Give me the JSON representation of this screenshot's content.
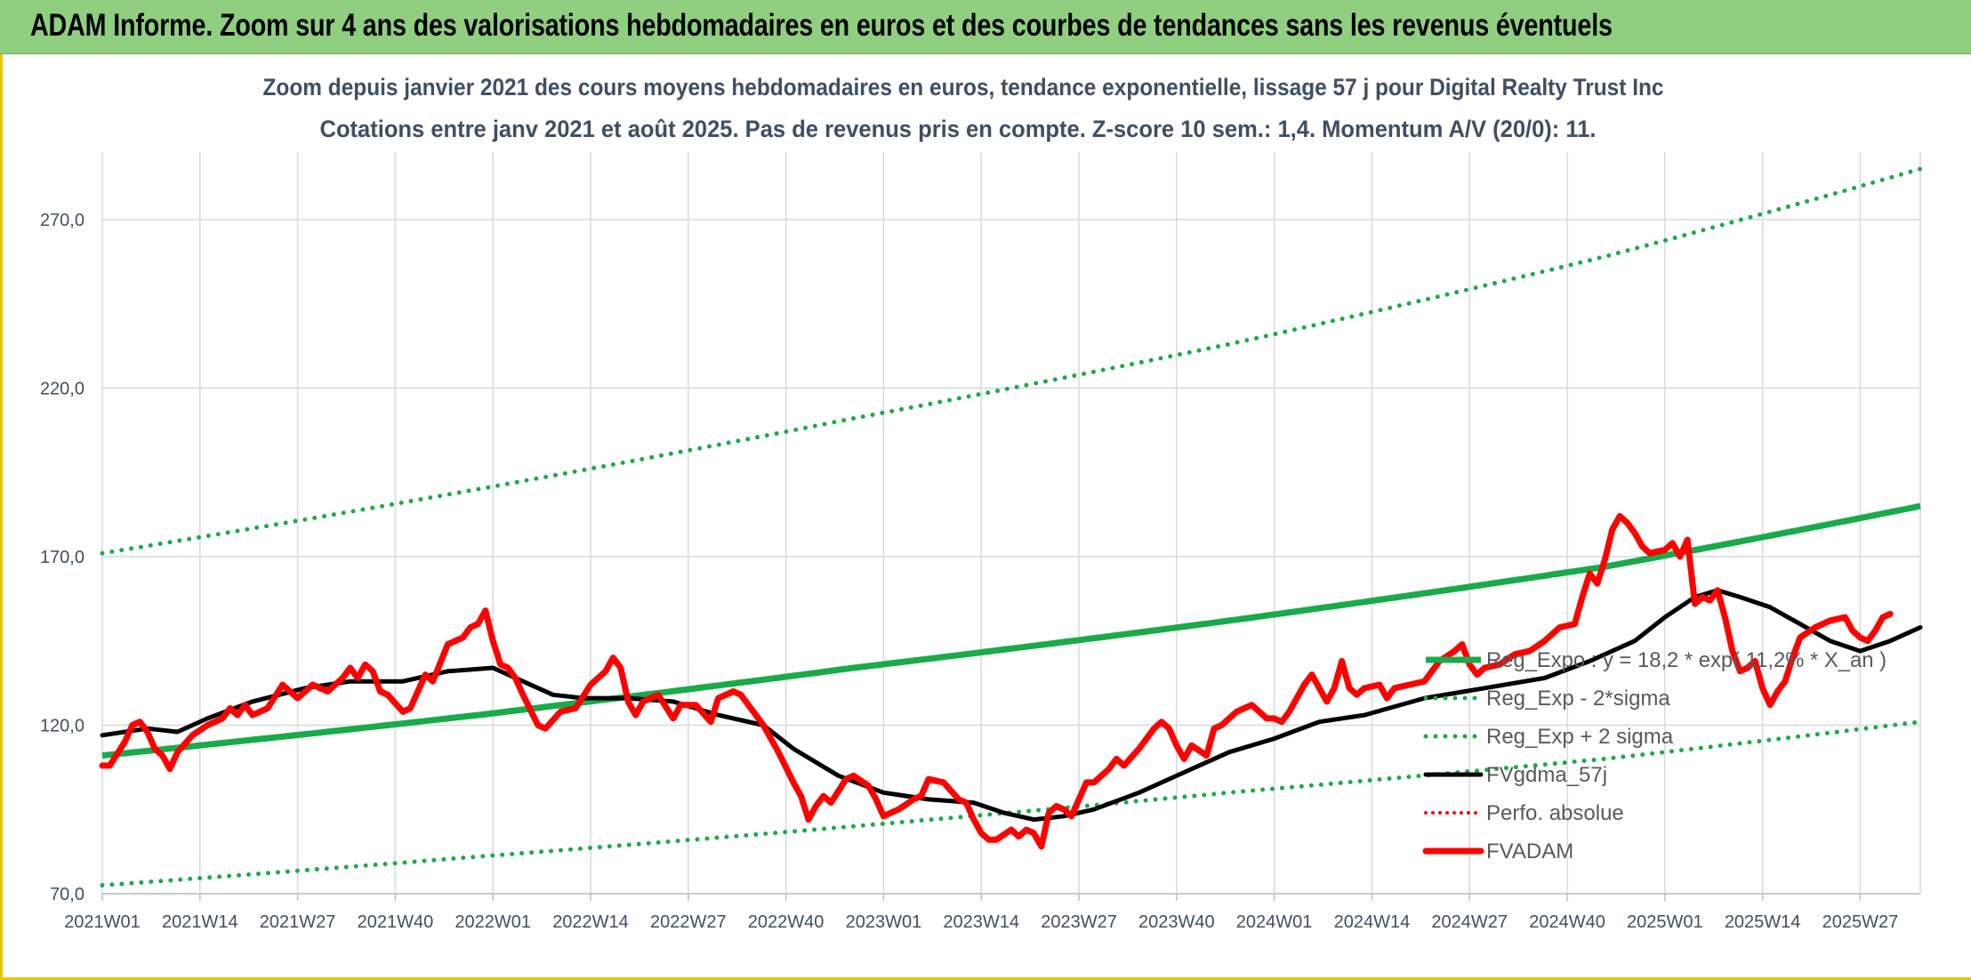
{
  "banner": {
    "title": "ADAM Informe. Zoom sur 4 ans des valorisations hebdomadaires en euros et des courbes de tendances sans les revenus éventuels"
  },
  "chart_data": {
    "type": "line",
    "title_lines": [
      "Zoom depuis janvier 2021 des cours moyens hebdomadaires en euros, tendance exponentielle, lissage 57 j pour Digital Realty Trust Inc",
      "Cotations entre janv 2021 et août 2025. Pas de revenus pris en compte. Z-score 10 sem.: 1,4. Momentum A/V (20/0): 11."
    ],
    "xlabel": "",
    "ylabel": "",
    "ylim": [
      70,
      290
    ],
    "y_ticks": [
      "70,0",
      "120,0",
      "170,0",
      "220,0",
      "270,0"
    ],
    "y_tick_values": [
      70,
      120,
      170,
      220,
      270
    ],
    "x_ticks": [
      "2021W01",
      "2021W14",
      "2021W27",
      "2021W40",
      "2022W01",
      "2022W14",
      "2022W27",
      "2022W40",
      "2023W01",
      "2023W14",
      "2023W27",
      "2023W40",
      "2024W01",
      "2024W14",
      "2024W27",
      "2024W40",
      "2025W01",
      "2025W14",
      "2025W27"
    ],
    "x_range_weeks": [
      0,
      242
    ],
    "grid": "vertical and horizontal",
    "legend_position": "bottom-right, inside plot",
    "colors": {
      "regression": "#1aaa4b",
      "bands": "#1aaa4b",
      "smoothed": "#000000",
      "perfo": "#e0141c",
      "price": "#ff0000"
    },
    "series": [
      {
        "name": "Reg_Expo : y = 18,2 * exp( 11,2% * X_an )",
        "style": "solid",
        "points": [
          [
            0,
            111
          ],
          [
            50,
            123
          ],
          [
            100,
            137
          ],
          [
            150,
            151
          ],
          [
            200,
            167
          ],
          [
            242,
            185
          ]
        ]
      },
      {
        "name": "Reg_Exp - 2*sigma",
        "style": "dotted",
        "points": [
          [
            0,
            72.5
          ],
          [
            50,
            81
          ],
          [
            100,
            90
          ],
          [
            150,
            100
          ],
          [
            200,
            110
          ],
          [
            242,
            121
          ]
        ]
      },
      {
        "name": "Reg_Exp + 2 sigma",
        "style": "dotted",
        "points": [
          [
            0,
            171
          ],
          [
            50,
            190
          ],
          [
            100,
            211
          ],
          [
            150,
            233
          ],
          [
            200,
            259
          ],
          [
            242,
            285
          ]
        ]
      },
      {
        "name": "FVgdma_57j",
        "style": "solid",
        "points": [
          [
            0,
            117
          ],
          [
            6,
            119
          ],
          [
            10,
            118
          ],
          [
            14,
            122
          ],
          [
            20,
            127
          ],
          [
            27,
            131
          ],
          [
            33,
            133
          ],
          [
            40,
            133
          ],
          [
            46,
            136
          ],
          [
            52,
            137
          ],
          [
            56,
            133
          ],
          [
            60,
            129
          ],
          [
            64,
            128
          ],
          [
            70,
            128
          ],
          [
            76,
            127
          ],
          [
            82,
            123
          ],
          [
            88,
            120
          ],
          [
            92,
            113
          ],
          [
            98,
            105
          ],
          [
            104,
            100
          ],
          [
            110,
            98
          ],
          [
            116,
            97
          ],
          [
            120,
            94
          ],
          [
            124,
            92
          ],
          [
            128,
            93
          ],
          [
            132,
            95
          ],
          [
            138,
            100
          ],
          [
            144,
            106
          ],
          [
            150,
            112
          ],
          [
            156,
            116
          ],
          [
            162,
            121
          ],
          [
            168,
            123
          ],
          [
            176,
            128
          ],
          [
            184,
            131
          ],
          [
            192,
            134
          ],
          [
            198,
            139
          ],
          [
            204,
            145
          ],
          [
            208,
            152
          ],
          [
            212,
            158
          ],
          [
            215,
            160
          ],
          [
            218,
            158
          ],
          [
            222,
            155
          ],
          [
            226,
            150
          ],
          [
            230,
            145
          ],
          [
            234,
            142
          ],
          [
            238,
            145
          ],
          [
            242,
            149
          ]
        ]
      },
      {
        "name": "Perfo. absolue",
        "style": "dotted",
        "points": []
      },
      {
        "name": "FVADAM",
        "style": "solid",
        "points": [
          [
            0,
            108
          ],
          [
            1,
            108
          ],
          [
            3,
            115
          ],
          [
            4,
            120
          ],
          [
            5,
            121
          ],
          [
            6,
            118
          ],
          [
            7,
            113
          ],
          [
            8,
            111
          ],
          [
            9,
            107
          ],
          [
            10,
            112
          ],
          [
            12,
            117
          ],
          [
            14,
            120
          ],
          [
            16,
            122
          ],
          [
            17,
            125
          ],
          [
            18,
            123
          ],
          [
            19,
            126
          ],
          [
            20,
            123
          ],
          [
            22,
            125
          ],
          [
            24,
            132
          ],
          [
            26,
            128
          ],
          [
            28,
            132
          ],
          [
            30,
            130
          ],
          [
            32,
            134
          ],
          [
            33,
            137
          ],
          [
            34,
            134
          ],
          [
            35,
            138
          ],
          [
            36,
            136
          ],
          [
            37,
            130
          ],
          [
            38,
            129
          ],
          [
            40,
            124
          ],
          [
            41,
            125
          ],
          [
            43,
            135
          ],
          [
            44,
            133
          ],
          [
            46,
            144
          ],
          [
            48,
            146
          ],
          [
            49,
            149
          ],
          [
            50,
            150
          ],
          [
            51,
            154
          ],
          [
            52,
            145
          ],
          [
            53,
            138
          ],
          [
            54,
            137
          ],
          [
            55,
            134
          ],
          [
            56,
            129
          ],
          [
            58,
            120
          ],
          [
            59,
            119
          ],
          [
            61,
            124
          ],
          [
            63,
            125
          ],
          [
            65,
            132
          ],
          [
            67,
            136
          ],
          [
            68,
            140
          ],
          [
            69,
            137
          ],
          [
            70,
            127
          ],
          [
            71,
            123
          ],
          [
            72,
            127
          ],
          [
            74,
            129
          ],
          [
            76,
            122
          ],
          [
            77,
            126
          ],
          [
            79,
            126
          ],
          [
            81,
            121
          ],
          [
            82,
            128
          ],
          [
            84,
            130
          ],
          [
            85,
            129
          ],
          [
            87,
            123
          ],
          [
            88,
            120
          ],
          [
            90,
            112
          ],
          [
            92,
            103
          ],
          [
            93,
            99
          ],
          [
            94,
            92
          ],
          [
            95,
            96
          ],
          [
            96,
            99
          ],
          [
            97,
            97
          ],
          [
            99,
            104
          ],
          [
            100,
            105
          ],
          [
            102,
            102
          ],
          [
            103,
            98
          ],
          [
            104,
            93
          ],
          [
            106,
            95
          ],
          [
            108,
            98
          ],
          [
            109,
            99
          ],
          [
            110,
            104
          ],
          [
            112,
            103
          ],
          [
            114,
            98
          ],
          [
            115,
            97
          ],
          [
            116,
            92
          ],
          [
            117,
            88
          ],
          [
            118,
            86
          ],
          [
            119,
            86
          ],
          [
            121,
            89
          ],
          [
            122,
            87
          ],
          [
            123,
            89
          ],
          [
            124,
            88
          ],
          [
            125,
            84
          ],
          [
            126,
            94
          ],
          [
            127,
            96
          ],
          [
            128,
            95
          ],
          [
            129,
            93
          ],
          [
            130,
            98
          ],
          [
            131,
            103
          ],
          [
            132,
            103
          ],
          [
            134,
            107
          ],
          [
            135,
            110
          ],
          [
            136,
            108
          ],
          [
            138,
            113
          ],
          [
            140,
            119
          ],
          [
            141,
            121
          ],
          [
            142,
            119
          ],
          [
            143,
            114
          ],
          [
            144,
            110
          ],
          [
            145,
            114
          ],
          [
            147,
            111
          ],
          [
            148,
            119
          ],
          [
            149,
            120
          ],
          [
            150,
            122
          ],
          [
            151,
            124
          ],
          [
            152,
            125
          ],
          [
            153,
            126
          ],
          [
            155,
            122
          ],
          [
            156,
            122
          ],
          [
            157,
            121
          ],
          [
            158,
            124
          ],
          [
            159,
            128
          ],
          [
            160,
            132
          ],
          [
            161,
            135
          ],
          [
            162,
            131
          ],
          [
            163,
            127
          ],
          [
            164,
            131
          ],
          [
            165,
            139
          ],
          [
            166,
            131
          ],
          [
            167,
            129
          ],
          [
            168,
            131
          ],
          [
            170,
            132
          ],
          [
            171,
            128
          ],
          [
            172,
            131
          ],
          [
            174,
            132
          ],
          [
            176,
            133
          ],
          [
            178,
            139
          ],
          [
            180,
            142
          ],
          [
            181,
            144
          ],
          [
            182,
            138
          ],
          [
            183,
            135
          ],
          [
            184,
            137
          ],
          [
            186,
            138
          ],
          [
            188,
            141
          ],
          [
            190,
            142
          ],
          [
            192,
            145
          ],
          [
            194,
            149
          ],
          [
            196,
            150
          ],
          [
            197,
            158
          ],
          [
            198,
            165
          ],
          [
            199,
            162
          ],
          [
            200,
            169
          ],
          [
            201,
            178
          ],
          [
            202,
            182
          ],
          [
            203,
            180
          ],
          [
            204,
            177
          ],
          [
            205,
            173
          ],
          [
            206,
            171
          ],
          [
            208,
            172
          ],
          [
            209,
            174
          ],
          [
            210,
            170
          ],
          [
            211,
            175
          ],
          [
            212,
            156
          ],
          [
            213,
            158
          ],
          [
            214,
            157
          ],
          [
            215,
            160
          ],
          [
            216,
            152
          ],
          [
            217,
            142
          ],
          [
            218,
            136
          ],
          [
            219,
            137
          ],
          [
            220,
            139
          ],
          [
            221,
            131
          ],
          [
            222,
            126
          ],
          [
            223,
            130
          ],
          [
            224,
            133
          ],
          [
            225,
            140
          ],
          [
            226,
            146
          ],
          [
            228,
            149
          ],
          [
            230,
            151
          ],
          [
            232,
            152
          ],
          [
            233,
            148
          ],
          [
            234,
            146
          ],
          [
            235,
            145
          ],
          [
            236,
            148
          ],
          [
            237,
            152
          ],
          [
            238,
            153
          ]
        ]
      }
    ]
  }
}
